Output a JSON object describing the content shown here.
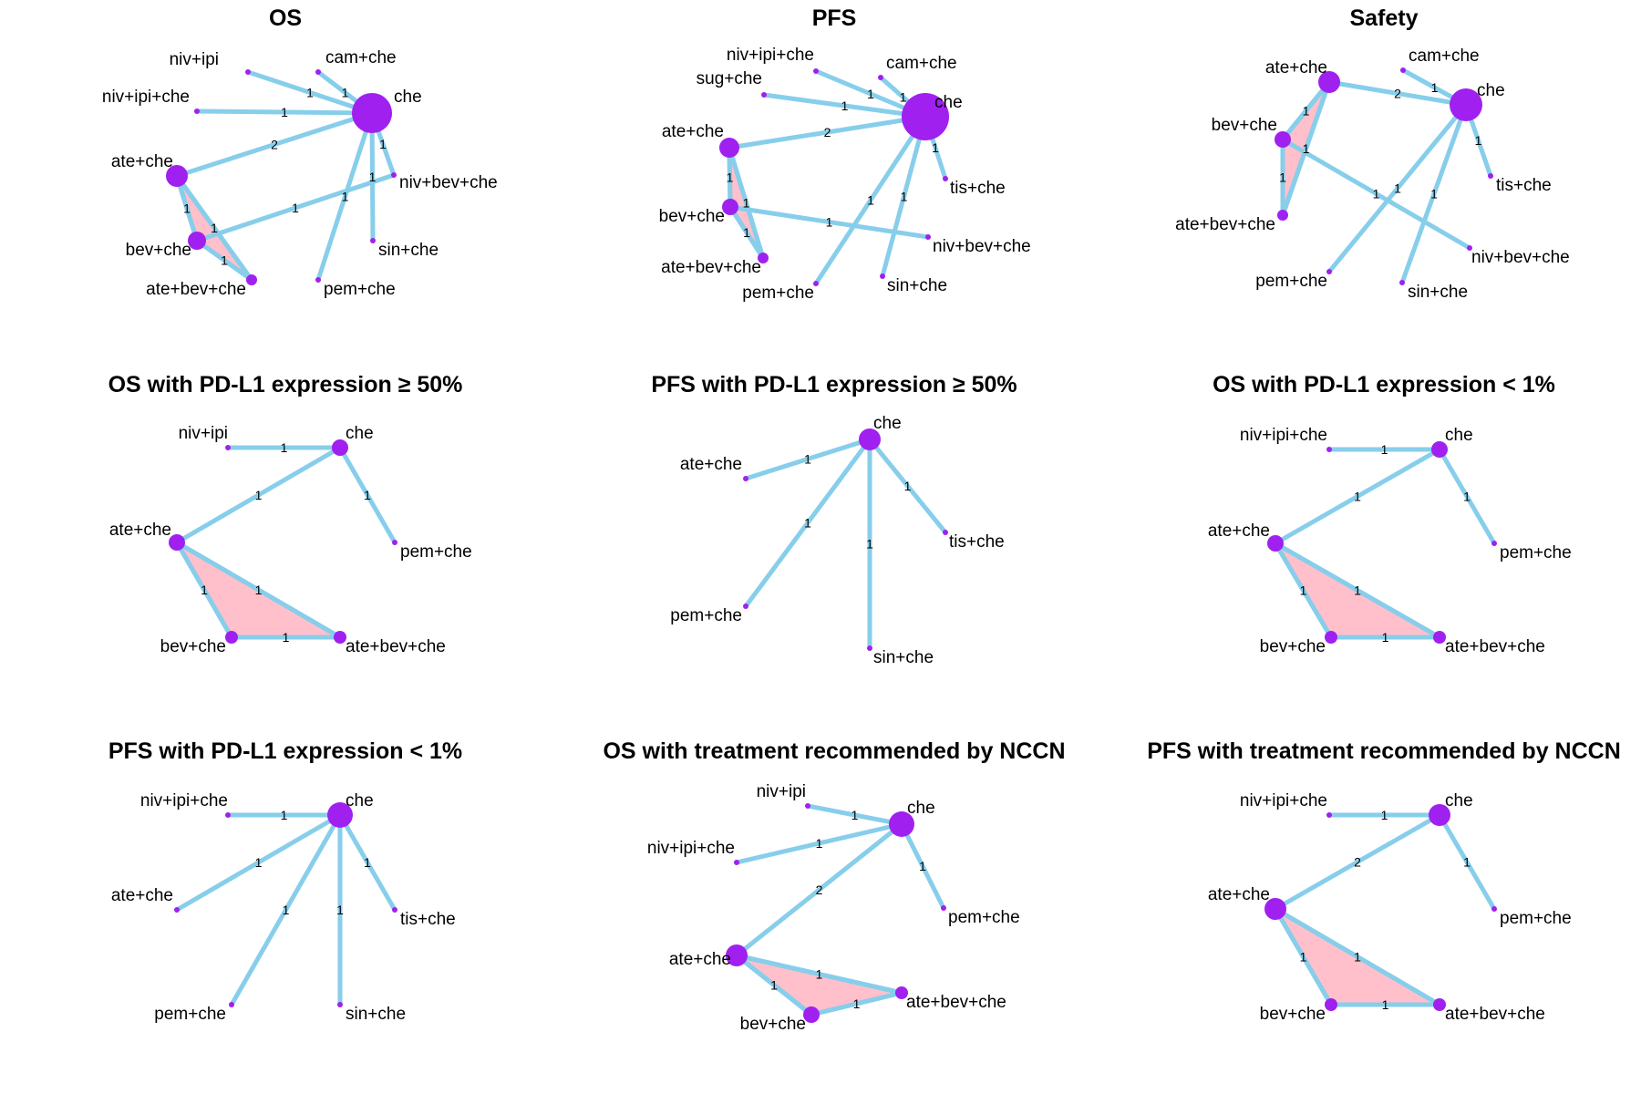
{
  "colors": {
    "edge": "#87ceeb",
    "node": "#a020f0",
    "loop_fill": "#ffc0cb",
    "background": "#ffffff"
  },
  "panels": [
    {
      "title": "OS",
      "nodes": [
        {
          "id": "niv+ipi",
          "label": "niv+ipi"
        },
        {
          "id": "cam+che",
          "label": "cam+che"
        },
        {
          "id": "che",
          "label": "che"
        },
        {
          "id": "niv+ipi+che",
          "label": "niv+ipi+che"
        },
        {
          "id": "ate+che",
          "label": "ate+che"
        },
        {
          "id": "niv+bev+che",
          "label": "niv+bev+che"
        },
        {
          "id": "bev+che",
          "label": "bev+che"
        },
        {
          "id": "sin+che",
          "label": "sin+che"
        },
        {
          "id": "ate+bev+che",
          "label": "ate+bev+che"
        },
        {
          "id": "pem+che",
          "label": "pem+che"
        }
      ],
      "edges": [
        {
          "from": "niv+ipi",
          "to": "che",
          "label": "1"
        },
        {
          "from": "cam+che",
          "to": "che",
          "label": "1"
        },
        {
          "from": "niv+ipi+che",
          "to": "che",
          "label": "1"
        },
        {
          "from": "ate+che",
          "to": "che",
          "label": "2"
        },
        {
          "from": "niv+bev+che",
          "to": "che",
          "label": "1"
        },
        {
          "from": "sin+che",
          "to": "che",
          "label": "1"
        },
        {
          "from": "pem+che",
          "to": "che",
          "label": "1"
        },
        {
          "from": "ate+che",
          "to": "bev+che",
          "label": "1"
        },
        {
          "from": "ate+che",
          "to": "ate+bev+che",
          "label": "1"
        },
        {
          "from": "bev+che",
          "to": "ate+bev+che",
          "label": "1"
        },
        {
          "from": "bev+che",
          "to": "niv+bev+che",
          "label": "1"
        }
      ]
    },
    {
      "title": "PFS",
      "nodes": [
        {
          "id": "niv+ipi+che",
          "label": "niv+ipi+che"
        },
        {
          "id": "cam+che",
          "label": "cam+che"
        },
        {
          "id": "sug+che",
          "label": "sug+che"
        },
        {
          "id": "che",
          "label": "che"
        },
        {
          "id": "ate+che",
          "label": "ate+che"
        },
        {
          "id": "tis+che",
          "label": "tis+che"
        },
        {
          "id": "bev+che",
          "label": "bev+che"
        },
        {
          "id": "niv+bev+che",
          "label": "niv+bev+che"
        },
        {
          "id": "ate+bev+che",
          "label": "ate+bev+che"
        },
        {
          "id": "sin+che",
          "label": "sin+che"
        },
        {
          "id": "pem+che",
          "label": "pem+che"
        }
      ],
      "edges": [
        {
          "from": "niv+ipi+che",
          "to": "che",
          "label": "1"
        },
        {
          "from": "cam+che",
          "to": "che",
          "label": "1"
        },
        {
          "from": "sug+che",
          "to": "che",
          "label": "1"
        },
        {
          "from": "ate+che",
          "to": "che",
          "label": "2"
        },
        {
          "from": "tis+che",
          "to": "che",
          "label": "1"
        },
        {
          "from": "sin+che",
          "to": "che",
          "label": "1"
        },
        {
          "from": "pem+che",
          "to": "che",
          "label": "1"
        },
        {
          "from": "ate+che",
          "to": "bev+che",
          "label": "1"
        },
        {
          "from": "ate+che",
          "to": "ate+bev+che",
          "label": "1"
        },
        {
          "from": "bev+che",
          "to": "ate+bev+che",
          "label": "1"
        },
        {
          "from": "bev+che",
          "to": "niv+bev+che",
          "label": "1"
        }
      ]
    },
    {
      "title": "Safety",
      "nodes": [
        {
          "id": "cam+che",
          "label": "cam+che"
        },
        {
          "id": "ate+che",
          "label": "ate+che"
        },
        {
          "id": "che",
          "label": "che"
        },
        {
          "id": "bev+che",
          "label": "bev+che"
        },
        {
          "id": "tis+che",
          "label": "tis+che"
        },
        {
          "id": "ate+bev+che",
          "label": "ate+bev+che"
        },
        {
          "id": "niv+bev+che",
          "label": "niv+bev+che"
        },
        {
          "id": "pem+che",
          "label": "pem+che"
        },
        {
          "id": "sin+che",
          "label": "sin+che"
        }
      ],
      "edges": [
        {
          "from": "cam+che",
          "to": "che",
          "label": "1"
        },
        {
          "from": "ate+che",
          "to": "che",
          "label": "2"
        },
        {
          "from": "tis+che",
          "to": "che",
          "label": "1"
        },
        {
          "from": "pem+che",
          "to": "che",
          "label": "1"
        },
        {
          "from": "sin+che",
          "to": "che",
          "label": "1"
        },
        {
          "from": "ate+che",
          "to": "bev+che",
          "label": "1"
        },
        {
          "from": "ate+che",
          "to": "ate+bev+che",
          "label": "1"
        },
        {
          "from": "bev+che",
          "to": "ate+bev+che",
          "label": "1"
        },
        {
          "from": "bev+che",
          "to": "niv+bev+che",
          "label": "1"
        }
      ]
    },
    {
      "title": "OS with PD-L1 expression ≥ 50%",
      "nodes": [
        {
          "id": "niv+ipi",
          "label": "niv+ipi"
        },
        {
          "id": "che",
          "label": "che"
        },
        {
          "id": "ate+che",
          "label": "ate+che"
        },
        {
          "id": "pem+che",
          "label": "pem+che"
        },
        {
          "id": "bev+che",
          "label": "bev+che"
        },
        {
          "id": "ate+bev+che",
          "label": "ate+bev+che"
        }
      ],
      "edges": [
        {
          "from": "niv+ipi",
          "to": "che",
          "label": "1"
        },
        {
          "from": "ate+che",
          "to": "che",
          "label": "1"
        },
        {
          "from": "pem+che",
          "to": "che",
          "label": "1"
        },
        {
          "from": "ate+che",
          "to": "bev+che",
          "label": "1"
        },
        {
          "from": "ate+che",
          "to": "ate+bev+che",
          "label": "1"
        },
        {
          "from": "bev+che",
          "to": "ate+bev+che",
          "label": "1"
        }
      ]
    },
    {
      "title": "PFS with PD-L1 expression ≥ 50%",
      "nodes": [
        {
          "id": "che",
          "label": "che"
        },
        {
          "id": "ate+che",
          "label": "ate+che"
        },
        {
          "id": "tis+che",
          "label": "tis+che"
        },
        {
          "id": "pem+che",
          "label": "pem+che"
        },
        {
          "id": "sin+che",
          "label": "sin+che"
        }
      ],
      "edges": [
        {
          "from": "ate+che",
          "to": "che",
          "label": "1"
        },
        {
          "from": "tis+che",
          "to": "che",
          "label": "1"
        },
        {
          "from": "pem+che",
          "to": "che",
          "label": "1"
        },
        {
          "from": "sin+che",
          "to": "che",
          "label": "1"
        }
      ]
    },
    {
      "title": "OS with PD-L1 expression < 1%",
      "nodes": [
        {
          "id": "niv+ipi+che",
          "label": "niv+ipi+che"
        },
        {
          "id": "che",
          "label": "che"
        },
        {
          "id": "ate+che",
          "label": "ate+che"
        },
        {
          "id": "pem+che",
          "label": "pem+che"
        },
        {
          "id": "bev+che",
          "label": "bev+che"
        },
        {
          "id": "ate+bev+che",
          "label": "ate+bev+che"
        }
      ],
      "edges": [
        {
          "from": "niv+ipi+che",
          "to": "che",
          "label": "1"
        },
        {
          "from": "ate+che",
          "to": "che",
          "label": "1"
        },
        {
          "from": "pem+che",
          "to": "che",
          "label": "1"
        },
        {
          "from": "ate+che",
          "to": "bev+che",
          "label": "1"
        },
        {
          "from": "ate+che",
          "to": "ate+bev+che",
          "label": "1"
        },
        {
          "from": "bev+che",
          "to": "ate+bev+che",
          "label": "1"
        }
      ]
    },
    {
      "title": "PFS with PD-L1 expression < 1%",
      "nodes": [
        {
          "id": "niv+ipi+che",
          "label": "niv+ipi+che"
        },
        {
          "id": "che",
          "label": "che"
        },
        {
          "id": "ate+che",
          "label": "ate+che"
        },
        {
          "id": "tis+che",
          "label": "tis+che"
        },
        {
          "id": "pem+che",
          "label": "pem+che"
        },
        {
          "id": "sin+che",
          "label": "sin+che"
        }
      ],
      "edges": [
        {
          "from": "niv+ipi+che",
          "to": "che",
          "label": "1"
        },
        {
          "from": "ate+che",
          "to": "che",
          "label": "1"
        },
        {
          "from": "tis+che",
          "to": "che",
          "label": "1"
        },
        {
          "from": "pem+che",
          "to": "che",
          "label": "1"
        },
        {
          "from": "sin+che",
          "to": "che",
          "label": "1"
        }
      ]
    },
    {
      "title": "OS with treatment recommended by NCCN",
      "nodes": [
        {
          "id": "niv+ipi",
          "label": "niv+ipi"
        },
        {
          "id": "che",
          "label": "che"
        },
        {
          "id": "niv+ipi+che",
          "label": "niv+ipi+che"
        },
        {
          "id": "pem+che",
          "label": "pem+che"
        },
        {
          "id": "ate+che",
          "label": "ate+che"
        },
        {
          "id": "ate+bev+che",
          "label": "ate+bev+che"
        },
        {
          "id": "bev+che",
          "label": "bev+che"
        }
      ],
      "edges": [
        {
          "from": "niv+ipi",
          "to": "che",
          "label": "1"
        },
        {
          "from": "niv+ipi+che",
          "to": "che",
          "label": "1"
        },
        {
          "from": "pem+che",
          "to": "che",
          "label": "1"
        },
        {
          "from": "ate+che",
          "to": "che",
          "label": "2"
        },
        {
          "from": "ate+che",
          "to": "bev+che",
          "label": "1"
        },
        {
          "from": "ate+che",
          "to": "ate+bev+che",
          "label": "1"
        },
        {
          "from": "bev+che",
          "to": "ate+bev+che",
          "label": "1"
        }
      ]
    },
    {
      "title": "PFS with treatment recommended by NCCN",
      "nodes": [
        {
          "id": "niv+ipi+che",
          "label": "niv+ipi+che"
        },
        {
          "id": "che",
          "label": "che"
        },
        {
          "id": "ate+che",
          "label": "ate+che"
        },
        {
          "id": "pem+che",
          "label": "pem+che"
        },
        {
          "id": "bev+che",
          "label": "bev+che"
        },
        {
          "id": "ate+bev+che",
          "label": "ate+bev+che"
        }
      ],
      "edges": [
        {
          "from": "niv+ipi+che",
          "to": "che",
          "label": "1"
        },
        {
          "from": "ate+che",
          "to": "che",
          "label": "2"
        },
        {
          "from": "pem+che",
          "to": "che",
          "label": "1"
        },
        {
          "from": "ate+che",
          "to": "bev+che",
          "label": "1"
        },
        {
          "from": "ate+che",
          "to": "ate+bev+che",
          "label": "1"
        },
        {
          "from": "bev+che",
          "to": "ate+bev+che",
          "label": "1"
        }
      ]
    }
  ]
}
